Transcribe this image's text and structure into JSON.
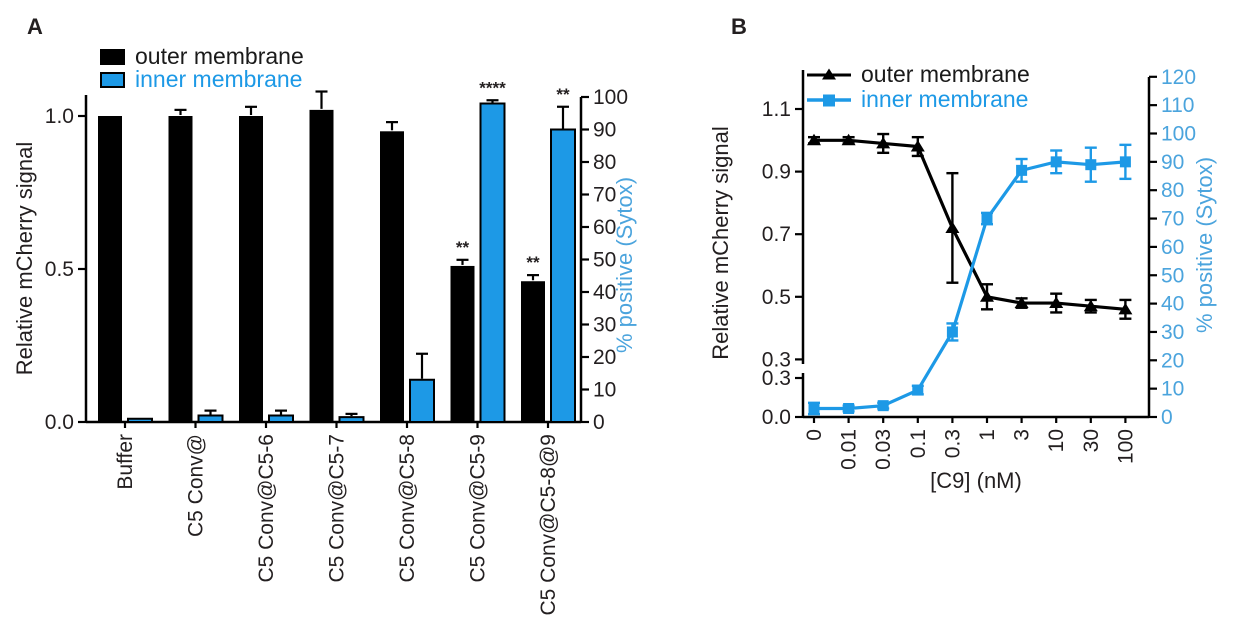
{
  "figure": {
    "background": "#ffffff",
    "colors": {
      "black_series": "#000000",
      "blue_series": "#1d99e6",
      "blue_axis_text": "#4ba4dd",
      "text": "#231f20"
    },
    "panel_a": {
      "label": "A",
      "legend": [
        {
          "label": "outer membrane",
          "swatch": "black-square"
        },
        {
          "label": "inner membrane",
          "swatch": "blue-square"
        }
      ],
      "chart_data": {
        "type": "bar",
        "categories": [
          "Buffer",
          "C5 Conv@",
          "C5 Conv@C5-6",
          "C5 Conv@C5-7",
          "C5 Conv@C5-8",
          "C5 Conv@C5-9",
          "C5 Conv@C5-8@9"
        ],
        "series": [
          {
            "name": "outer membrane",
            "axis": "left",
            "color": "#000000",
            "values": [
              1.0,
              1.0,
              1.0,
              1.02,
              0.95,
              0.51,
              0.46
            ],
            "errors": [
              0,
              0.02,
              0.03,
              0.06,
              0.03,
              0.02,
              0.02
            ],
            "significance": [
              "",
              "",
              "",
              "",
              "",
              "**",
              "**"
            ]
          },
          {
            "name": "inner membrane",
            "axis": "right",
            "color": "#1d99e6",
            "values": [
              1,
              2,
              2,
              1.5,
              13,
              98,
              90
            ],
            "errors": [
              0,
              1.5,
              1.5,
              1,
              8,
              1,
              7
            ],
            "significance": [
              "",
              "",
              "",
              "",
              "",
              "****",
              "**"
            ]
          }
        ],
        "left_axis": {
          "label": "Relative mCherry signal",
          "ticks": [
            "0.0",
            "0.5",
            "1.0"
          ],
          "range": [
            0,
            1.07
          ]
        },
        "right_axis": {
          "label": "% positive (Sytox)",
          "ticks": [
            0,
            10,
            20,
            30,
            40,
            50,
            60,
            70,
            80,
            90,
            100
          ],
          "range": [
            0,
            100
          ]
        }
      }
    },
    "panel_b": {
      "label": "B",
      "legend": [
        {
          "label": "outer membrane",
          "marker": "triangle"
        },
        {
          "label": "inner membrane",
          "marker": "square"
        }
      ],
      "chart_data": {
        "type": "line",
        "x_labels": [
          "0",
          "0.01",
          "0.03",
          "0.1",
          "0.3",
          "1",
          "3",
          "10",
          "30",
          "100"
        ],
        "xlabel": "[C9] (nM)",
        "series": [
          {
            "name": "outer membrane",
            "axis": "left",
            "marker": "triangle",
            "color": "#000000",
            "values": [
              1.0,
              1.0,
              0.99,
              0.98,
              0.72,
              0.5,
              0.48,
              0.48,
              0.47,
              0.46
            ],
            "errors": [
              0.01,
              0.01,
              0.03,
              0.03,
              0.175,
              0.04,
              0.015,
              0.03,
              0.02,
              0.03
            ]
          },
          {
            "name": "inner membrane",
            "axis": "right",
            "marker": "square",
            "color": "#1d99e6",
            "values": [
              3,
              3,
              4,
              9.5,
              30,
              70,
              87,
              90,
              89,
              90
            ],
            "errors": [
              2,
              1,
              1,
              1.5,
              3,
              2,
              4,
              4,
              6,
              6
            ]
          }
        ],
        "left_axis": {
          "label": "Relative mCherry signal",
          "ticks_upper": [
            "1.1",
            "0.9",
            "0.7",
            "0.5",
            "0.3"
          ],
          "ticks_lower": [
            "0.3",
            "0.0"
          ],
          "axis_break": true
        },
        "right_axis": {
          "label": "% positive (Sytox)",
          "ticks": [
            0,
            10,
            20,
            30,
            40,
            50,
            60,
            70,
            80,
            90,
            100,
            110,
            120
          ]
        }
      }
    }
  }
}
